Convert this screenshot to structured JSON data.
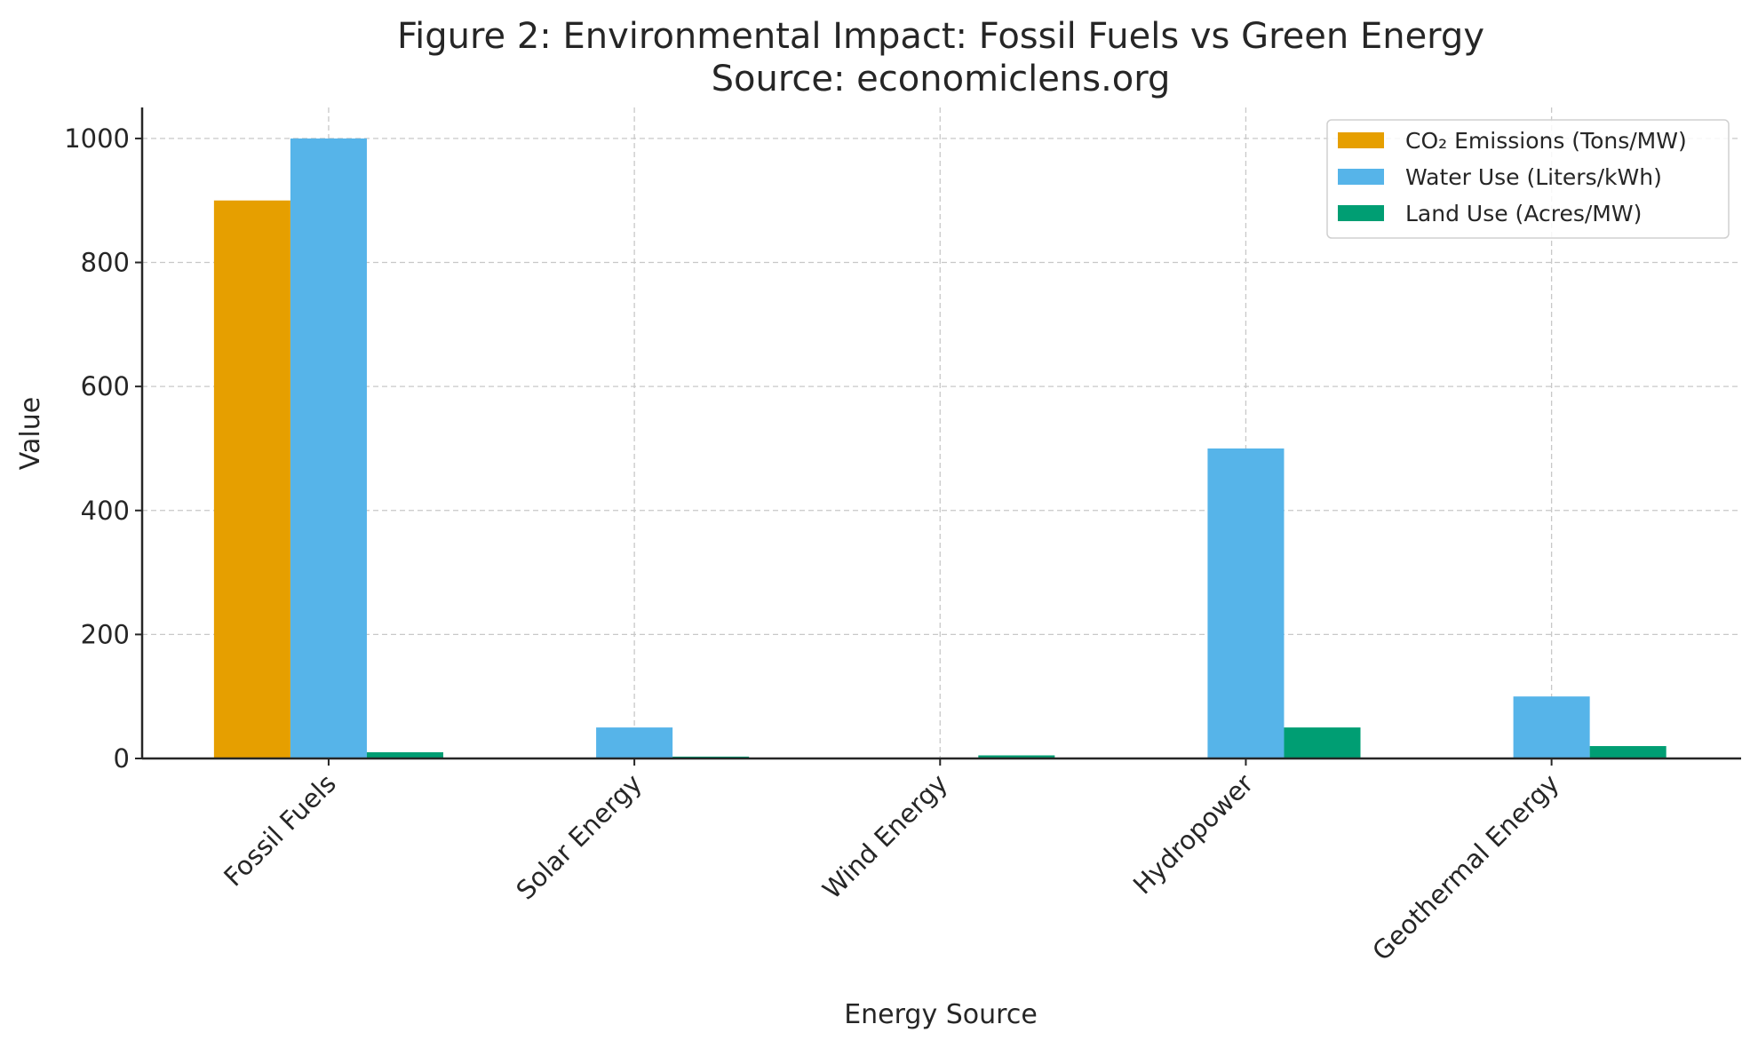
{
  "chart_data": {
    "type": "bar",
    "title": "Figure 2: Environmental Impact: Fossil Fuels vs Green Energy",
    "subtitle": "Source: economiclens.org",
    "xlabel": "Energy Source",
    "ylabel": "Value",
    "categories": [
      "Fossil Fuels",
      "Solar Energy",
      "Wind Energy",
      "Hydropower",
      "Geothermal Energy"
    ],
    "series": [
      {
        "name": "CO₂ Emissions (Tons/MW)",
        "color": "#E69F00",
        "values": [
          900,
          0,
          0,
          0,
          0
        ]
      },
      {
        "name": "Water Use (Liters/kWh)",
        "color": "#56B4E9",
        "values": [
          1000,
          50,
          0,
          500,
          100
        ]
      },
      {
        "name": "Land Use (Acres/MW)",
        "color": "#009E73",
        "values": [
          10,
          3,
          5,
          50,
          20
        ]
      }
    ],
    "ylim": [
      0,
      1050
    ],
    "yticks": [
      0,
      200,
      400,
      600,
      800,
      1000
    ],
    "grid": true,
    "legend": "top-right"
  }
}
